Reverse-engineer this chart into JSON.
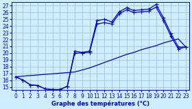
{
  "xlabel": "Graphe des températures (°C)",
  "bg_color": "#cceeff",
  "line_color": "#0000bb",
  "grid_color": "#99bbcc",
  "xlim": [
    -0.5,
    23.5
  ],
  "ylim": [
    14.5,
    27.5
  ],
  "xticks": [
    0,
    1,
    2,
    3,
    4,
    5,
    6,
    7,
    8,
    9,
    10,
    11,
    12,
    13,
    14,
    15,
    16,
    17,
    18,
    19,
    20,
    21,
    22,
    23
  ],
  "yticks": [
    15,
    16,
    17,
    18,
    19,
    20,
    21,
    22,
    23,
    24,
    25,
    26,
    27
  ],
  "line1_x": [
    0,
    1,
    2,
    3,
    4,
    5,
    6,
    7,
    8,
    9,
    10,
    11,
    12,
    13,
    14,
    15,
    16,
    17,
    18,
    19,
    20,
    21,
    22,
    23
  ],
  "line1_y": [
    16.5,
    16.0,
    15.3,
    15.2,
    14.7,
    14.6,
    14.6,
    15.1,
    20.3,
    20.1,
    20.3,
    24.8,
    25.0,
    24.6,
    26.1,
    26.7,
    26.3,
    26.4,
    26.5,
    27.2,
    25.2,
    22.9,
    20.9,
    20.9
  ],
  "line2_x": [
    0,
    1,
    2,
    3,
    4,
    5,
    6,
    7,
    8,
    9,
    10,
    11,
    12,
    13,
    14,
    15,
    16,
    17,
    18,
    19,
    20,
    21,
    22,
    23
  ],
  "line2_y": [
    16.5,
    16.0,
    15.3,
    15.2,
    14.7,
    14.6,
    14.6,
    15.1,
    20.0,
    20.0,
    20.1,
    24.3,
    24.5,
    24.3,
    25.8,
    26.4,
    26.0,
    26.1,
    26.2,
    26.8,
    24.8,
    22.5,
    20.6,
    20.9
  ],
  "line3_x": [
    0,
    8,
    9,
    10,
    11,
    12,
    13,
    14,
    15,
    16,
    17,
    18,
    19,
    20,
    21,
    22,
    23
  ],
  "line3_y": [
    16.5,
    17.2,
    17.5,
    17.8,
    18.2,
    18.6,
    19.0,
    19.4,
    19.8,
    20.1,
    20.5,
    20.8,
    21.1,
    21.5,
    21.8,
    22.1,
    20.9
  ],
  "markersize": 2.0,
  "linewidth": 0.9,
  "tick_fontsize": 5.5,
  "xlabel_fontsize": 6.0
}
